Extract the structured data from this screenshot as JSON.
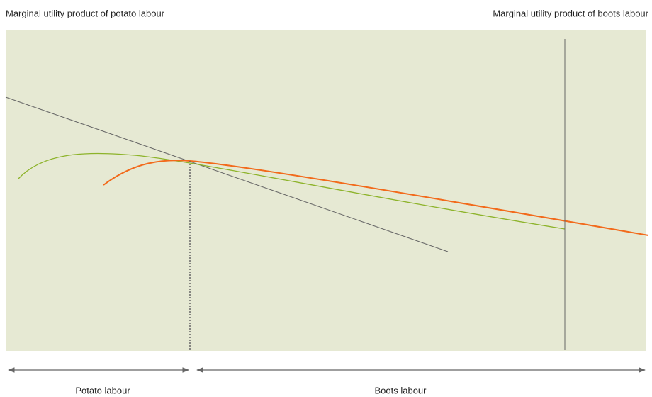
{
  "labels": {
    "left_axis": "Marginal utility product of potato labour",
    "right_axis": "Marginal utility product of boots labour",
    "potato_span": "Potato labour",
    "boots_span": "Boots labour"
  }
}
